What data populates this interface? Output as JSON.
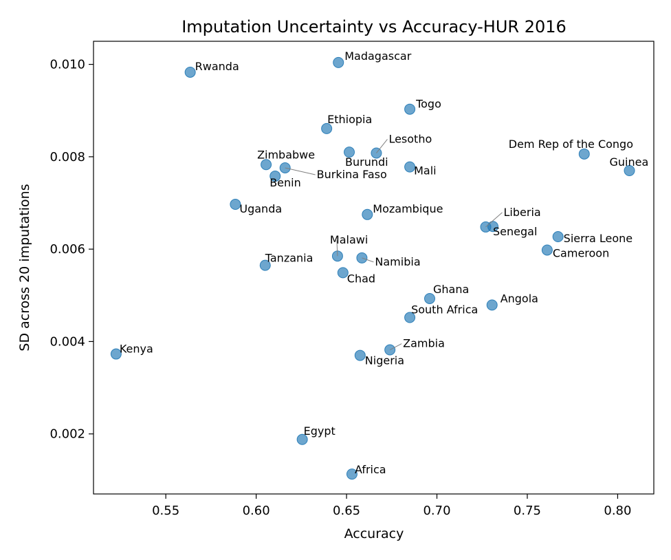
{
  "chart_data": {
    "type": "scatter",
    "title": "Imputation Uncertainty vs Accuracy-HUR 2016",
    "xlabel": "Accuracy",
    "ylabel": "SD across 20 imputations",
    "xlim": [
      0.51,
      0.82
    ],
    "ylim": [
      0.0007,
      0.0105
    ],
    "xticks": [
      0.55,
      0.6,
      0.65,
      0.7,
      0.75,
      0.8
    ],
    "xtick_labels": [
      "0.55",
      "0.60",
      "0.65",
      "0.70",
      "0.75",
      "0.80"
    ],
    "yticks": [
      0.002,
      0.004,
      0.006,
      0.008,
      0.01
    ],
    "ytick_labels": [
      "0.002",
      "0.004",
      "0.006",
      "0.008",
      "0.010"
    ],
    "grid": false,
    "legend": "none",
    "marker_color": "#1f77b4",
    "points": [
      {
        "label": "Rwanda",
        "x": 0.5635,
        "y": 0.00983
      },
      {
        "label": "Madagascar",
        "x": 0.6455,
        "y": 0.01004
      },
      {
        "label": "Togo",
        "x": 0.685,
        "y": 0.00903
      },
      {
        "label": "Ethiopia",
        "x": 0.639,
        "y": 0.00861
      },
      {
        "label": "Burundi",
        "x": 0.6515,
        "y": 0.0081
      },
      {
        "label": "Lesotho",
        "x": 0.6665,
        "y": 0.00808
      },
      {
        "label": "Dem Rep of the Congo",
        "x": 0.7815,
        "y": 0.00806
      },
      {
        "label": "Zimbabwe",
        "x": 0.6055,
        "y": 0.00783
      },
      {
        "label": "Burkina Faso",
        "x": 0.616,
        "y": 0.00776
      },
      {
        "label": "Mali",
        "x": 0.685,
        "y": 0.00778
      },
      {
        "label": "Guinea",
        "x": 0.8065,
        "y": 0.0077
      },
      {
        "label": "Benin",
        "x": 0.6105,
        "y": 0.00758
      },
      {
        "label": "Uganda",
        "x": 0.5885,
        "y": 0.00697
      },
      {
        "label": "Mozambique",
        "x": 0.6615,
        "y": 0.00675
      },
      {
        "label": "Liberia",
        "x": 0.727,
        "y": 0.00648
      },
      {
        "label": "Senegal",
        "x": 0.731,
        "y": 0.00649
      },
      {
        "label": "Sierra Leone",
        "x": 0.767,
        "y": 0.00627
      },
      {
        "label": "Cameroon",
        "x": 0.761,
        "y": 0.00598
      },
      {
        "label": "Malawi",
        "x": 0.645,
        "y": 0.00585
      },
      {
        "label": "Namibia",
        "x": 0.6585,
        "y": 0.00581
      },
      {
        "label": "Tanzania",
        "x": 0.605,
        "y": 0.00565
      },
      {
        "label": "Chad",
        "x": 0.648,
        "y": 0.00549
      },
      {
        "label": "Ghana",
        "x": 0.696,
        "y": 0.00493
      },
      {
        "label": "Angola",
        "x": 0.7305,
        "y": 0.00479
      },
      {
        "label": "South Africa",
        "x": 0.685,
        "y": 0.00452
      },
      {
        "label": "Zambia",
        "x": 0.674,
        "y": 0.00382
      },
      {
        "label": "Kenya",
        "x": 0.5225,
        "y": 0.00373
      },
      {
        "label": "Nigeria",
        "x": 0.6575,
        "y": 0.0037
      },
      {
        "label": "Egypt",
        "x": 0.6255,
        "y": 0.00188
      },
      {
        "label": "Africa",
        "x": 0.653,
        "y": 0.00113
      }
    ]
  }
}
